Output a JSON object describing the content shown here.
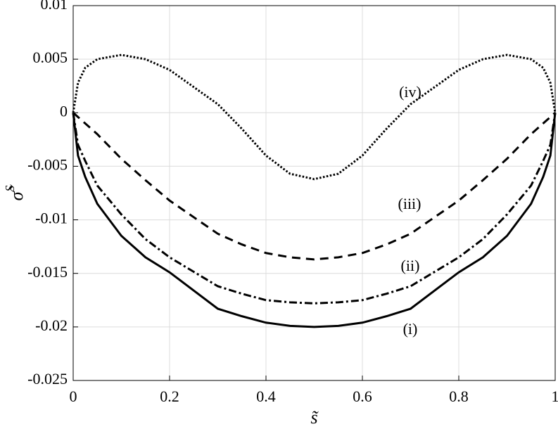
{
  "chart_data": {
    "type": "line",
    "xlabel": "s̃",
    "ylabel": "σ̃",
    "ylabel_superscript": "S",
    "x": [
      0,
      0.01,
      0.025,
      0.05,
      0.1,
      0.15,
      0.2,
      0.3,
      0.35,
      0.4,
      0.45,
      0.5,
      0.55,
      0.6,
      0.65,
      0.7,
      0.8,
      0.85,
      0.9,
      0.95,
      0.975,
      0.99,
      1
    ],
    "series": [
      {
        "name": "(i)",
        "color": "#000000",
        "linestyle": "solid",
        "values": [
          0,
          -0.004,
          -0.006,
          -0.0085,
          -0.0115,
          -0.0135,
          -0.0149,
          -0.0183,
          -0.019,
          -0.0196,
          -0.0199,
          -0.02,
          -0.0199,
          -0.0196,
          -0.019,
          -0.0183,
          -0.0149,
          -0.0135,
          -0.0115,
          -0.0085,
          -0.006,
          -0.004,
          0
        ]
      },
      {
        "name": "(ii)",
        "color": "#000000",
        "linestyle": "dashdot",
        "values": [
          0,
          -0.003,
          -0.0045,
          -0.0068,
          -0.0095,
          -0.0118,
          -0.0135,
          -0.0162,
          -0.0169,
          -0.0175,
          -0.0177,
          -0.0178,
          -0.0177,
          -0.0175,
          -0.0169,
          -0.0162,
          -0.0135,
          -0.0118,
          -0.0095,
          -0.0068,
          -0.0045,
          -0.003,
          0
        ]
      },
      {
        "name": "(iii)",
        "color": "#000000",
        "linestyle": "dashed",
        "values": [
          0,
          -0.0004,
          -0.001,
          -0.002,
          -0.0043,
          -0.0063,
          -0.0082,
          -0.0113,
          -0.0123,
          -0.0131,
          -0.0135,
          -0.0137,
          -0.0135,
          -0.0131,
          -0.0123,
          -0.0113,
          -0.0082,
          -0.0063,
          -0.0043,
          -0.002,
          -0.001,
          -0.0004,
          0
        ]
      },
      {
        "name": "(iv)",
        "color": "#000000",
        "linestyle": "dotted",
        "values": [
          0,
          0.0028,
          0.0042,
          0.005,
          0.0054,
          0.005,
          0.004,
          0.0008,
          -0.0015,
          -0.004,
          -0.0057,
          -0.0062,
          -0.0057,
          -0.004,
          -0.0015,
          0.0008,
          0.004,
          0.005,
          0.0054,
          0.005,
          0.0042,
          0.0028,
          0
        ]
      }
    ],
    "xlim": [
      0,
      1
    ],
    "xticks": [
      0,
      0.2,
      0.4,
      0.6,
      0.8,
      1
    ],
    "ylim": [
      -0.025,
      0.01
    ],
    "yticks": [
      -0.025,
      -0.02,
      -0.015,
      -0.01,
      -0.005,
      0,
      0.005,
      0.01
    ],
    "grid": true,
    "legend": false
  }
}
